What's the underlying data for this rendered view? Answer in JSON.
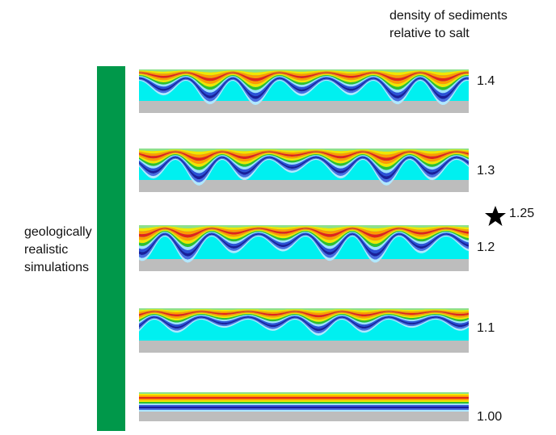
{
  "header": {
    "lines": [
      "density of sediments",
      "relative to salt"
    ]
  },
  "side_label": {
    "lines": [
      "geologically",
      "realistic",
      "simulations"
    ]
  },
  "panels": [
    {
      "label": "1.4"
    },
    {
      "label": "1.3"
    },
    {
      "label": "1.2"
    },
    {
      "label": "1.1"
    },
    {
      "label": "1.00"
    }
  ],
  "marker": {
    "label": "1.25"
  }
}
